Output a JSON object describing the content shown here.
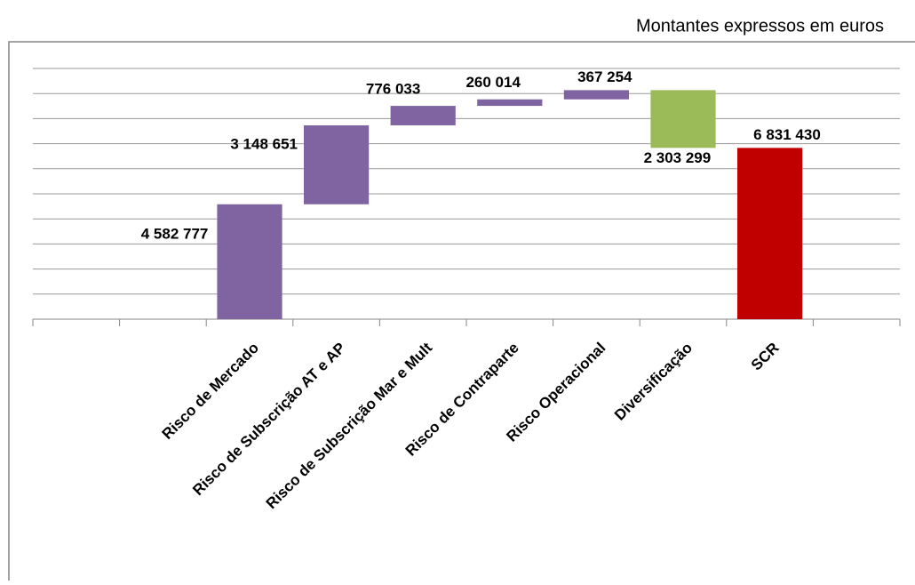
{
  "chart_data": {
    "type": "waterfall",
    "subtitle": "Montantes expressos em euros",
    "categories": [
      null,
      null,
      "Risco de Mercado",
      "Risco de Subscrição AT e AP",
      "Risco de Subscrição Mar e Mult",
      "Risco de Contraparte",
      "Risco Operacional",
      "Diversificação",
      "SCR",
      null
    ],
    "values": [
      null,
      null,
      4582777,
      3148651,
      776033,
      260014,
      367254,
      -2303299,
      6831430,
      null
    ],
    "value_labels": [
      null,
      null,
      "4 582 777",
      "3 148 651",
      "776 033",
      "260 014",
      "367 254",
      "2 303 299",
      "6 831 430",
      null
    ],
    "measures": [
      null,
      null,
      "increase",
      "increase",
      "increase",
      "increase",
      "increase",
      "decrease",
      "total",
      null
    ],
    "colors": [
      null,
      null,
      "#8064a2",
      "#8064a2",
      "#8064a2",
      "#8064a2",
      "#8064a2",
      "#9bbb59",
      "#c00000",
      null
    ],
    "ylim": [
      0,
      10000000
    ],
    "yticks": [
      0,
      1000000,
      2000000,
      3000000,
      4000000,
      5000000,
      6000000,
      7000000,
      8000000,
      9000000,
      10000000
    ],
    "ytick_labels": false,
    "grid": true
  }
}
